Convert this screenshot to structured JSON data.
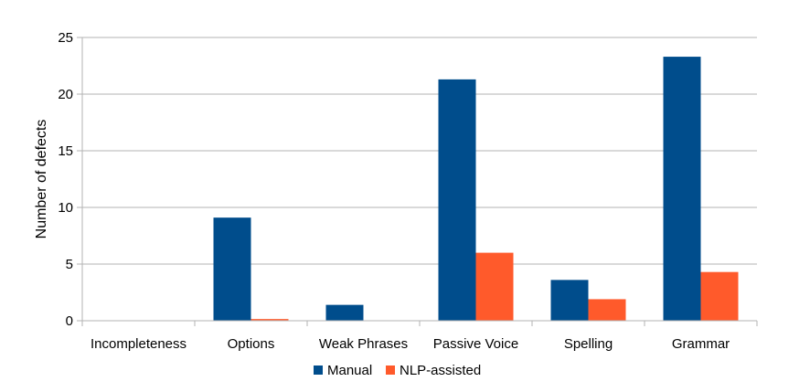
{
  "chart_data": {
    "type": "bar",
    "categories": [
      "Incompleteness",
      "Options",
      "Weak Phrases",
      "Passive Voice",
      "Spelling",
      "Grammar"
    ],
    "series": [
      {
        "name": "Manual",
        "values": [
          0,
          9.1,
          1.4,
          21.3,
          3.6,
          23.3
        ],
        "color": "#004d8c"
      },
      {
        "name": "NLP-assisted",
        "values": [
          0,
          0.15,
          0,
          6.0,
          1.9,
          4.3
        ],
        "color": "#ff5a2b"
      }
    ],
    "ylabel": "Number of defects",
    "xlabel": "",
    "ylim": [
      0,
      25
    ],
    "yticks": [
      0,
      5,
      10,
      15,
      20,
      25
    ],
    "grid": true,
    "legend_position": "bottom-center"
  }
}
